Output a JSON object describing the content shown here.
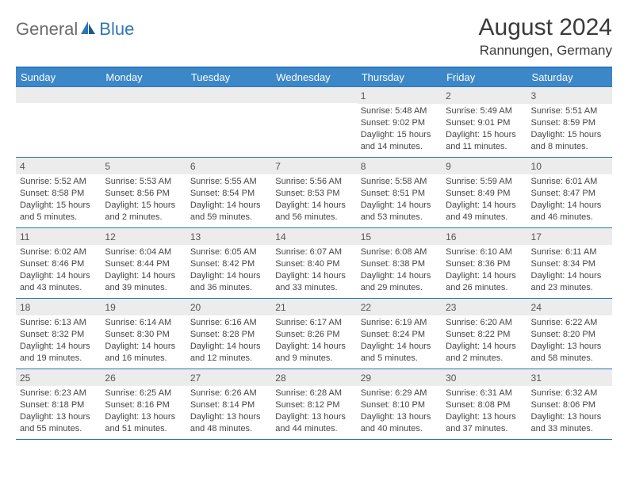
{
  "logo": {
    "part1": "General",
    "part2": "Blue"
  },
  "title": "August 2024",
  "location": "Rannungen, Germany",
  "colors": {
    "header_bg": "#3b87c8",
    "border": "#2f76b5",
    "daynum_bg": "#ececec",
    "logo_gray": "#6b6b6b",
    "logo_blue": "#2f76b5"
  },
  "weekdays": [
    "Sunday",
    "Monday",
    "Tuesday",
    "Wednesday",
    "Thursday",
    "Friday",
    "Saturday"
  ],
  "weeks": [
    [
      {
        "n": "",
        "sr": "",
        "ss": "",
        "dl": ""
      },
      {
        "n": "",
        "sr": "",
        "ss": "",
        "dl": ""
      },
      {
        "n": "",
        "sr": "",
        "ss": "",
        "dl": ""
      },
      {
        "n": "",
        "sr": "",
        "ss": "",
        "dl": ""
      },
      {
        "n": "1",
        "sr": "Sunrise: 5:48 AM",
        "ss": "Sunset: 9:02 PM",
        "dl": "Daylight: 15 hours and 14 minutes."
      },
      {
        "n": "2",
        "sr": "Sunrise: 5:49 AM",
        "ss": "Sunset: 9:01 PM",
        "dl": "Daylight: 15 hours and 11 minutes."
      },
      {
        "n": "3",
        "sr": "Sunrise: 5:51 AM",
        "ss": "Sunset: 8:59 PM",
        "dl": "Daylight: 15 hours and 8 minutes."
      }
    ],
    [
      {
        "n": "4",
        "sr": "Sunrise: 5:52 AM",
        "ss": "Sunset: 8:58 PM",
        "dl": "Daylight: 15 hours and 5 minutes."
      },
      {
        "n": "5",
        "sr": "Sunrise: 5:53 AM",
        "ss": "Sunset: 8:56 PM",
        "dl": "Daylight: 15 hours and 2 minutes."
      },
      {
        "n": "6",
        "sr": "Sunrise: 5:55 AM",
        "ss": "Sunset: 8:54 PM",
        "dl": "Daylight: 14 hours and 59 minutes."
      },
      {
        "n": "7",
        "sr": "Sunrise: 5:56 AM",
        "ss": "Sunset: 8:53 PM",
        "dl": "Daylight: 14 hours and 56 minutes."
      },
      {
        "n": "8",
        "sr": "Sunrise: 5:58 AM",
        "ss": "Sunset: 8:51 PM",
        "dl": "Daylight: 14 hours and 53 minutes."
      },
      {
        "n": "9",
        "sr": "Sunrise: 5:59 AM",
        "ss": "Sunset: 8:49 PM",
        "dl": "Daylight: 14 hours and 49 minutes."
      },
      {
        "n": "10",
        "sr": "Sunrise: 6:01 AM",
        "ss": "Sunset: 8:47 PM",
        "dl": "Daylight: 14 hours and 46 minutes."
      }
    ],
    [
      {
        "n": "11",
        "sr": "Sunrise: 6:02 AM",
        "ss": "Sunset: 8:46 PM",
        "dl": "Daylight: 14 hours and 43 minutes."
      },
      {
        "n": "12",
        "sr": "Sunrise: 6:04 AM",
        "ss": "Sunset: 8:44 PM",
        "dl": "Daylight: 14 hours and 39 minutes."
      },
      {
        "n": "13",
        "sr": "Sunrise: 6:05 AM",
        "ss": "Sunset: 8:42 PM",
        "dl": "Daylight: 14 hours and 36 minutes."
      },
      {
        "n": "14",
        "sr": "Sunrise: 6:07 AM",
        "ss": "Sunset: 8:40 PM",
        "dl": "Daylight: 14 hours and 33 minutes."
      },
      {
        "n": "15",
        "sr": "Sunrise: 6:08 AM",
        "ss": "Sunset: 8:38 PM",
        "dl": "Daylight: 14 hours and 29 minutes."
      },
      {
        "n": "16",
        "sr": "Sunrise: 6:10 AM",
        "ss": "Sunset: 8:36 PM",
        "dl": "Daylight: 14 hours and 26 minutes."
      },
      {
        "n": "17",
        "sr": "Sunrise: 6:11 AM",
        "ss": "Sunset: 8:34 PM",
        "dl": "Daylight: 14 hours and 23 minutes."
      }
    ],
    [
      {
        "n": "18",
        "sr": "Sunrise: 6:13 AM",
        "ss": "Sunset: 8:32 PM",
        "dl": "Daylight: 14 hours and 19 minutes."
      },
      {
        "n": "19",
        "sr": "Sunrise: 6:14 AM",
        "ss": "Sunset: 8:30 PM",
        "dl": "Daylight: 14 hours and 16 minutes."
      },
      {
        "n": "20",
        "sr": "Sunrise: 6:16 AM",
        "ss": "Sunset: 8:28 PM",
        "dl": "Daylight: 14 hours and 12 minutes."
      },
      {
        "n": "21",
        "sr": "Sunrise: 6:17 AM",
        "ss": "Sunset: 8:26 PM",
        "dl": "Daylight: 14 hours and 9 minutes."
      },
      {
        "n": "22",
        "sr": "Sunrise: 6:19 AM",
        "ss": "Sunset: 8:24 PM",
        "dl": "Daylight: 14 hours and 5 minutes."
      },
      {
        "n": "23",
        "sr": "Sunrise: 6:20 AM",
        "ss": "Sunset: 8:22 PM",
        "dl": "Daylight: 14 hours and 2 minutes."
      },
      {
        "n": "24",
        "sr": "Sunrise: 6:22 AM",
        "ss": "Sunset: 8:20 PM",
        "dl": "Daylight: 13 hours and 58 minutes."
      }
    ],
    [
      {
        "n": "25",
        "sr": "Sunrise: 6:23 AM",
        "ss": "Sunset: 8:18 PM",
        "dl": "Daylight: 13 hours and 55 minutes."
      },
      {
        "n": "26",
        "sr": "Sunrise: 6:25 AM",
        "ss": "Sunset: 8:16 PM",
        "dl": "Daylight: 13 hours and 51 minutes."
      },
      {
        "n": "27",
        "sr": "Sunrise: 6:26 AM",
        "ss": "Sunset: 8:14 PM",
        "dl": "Daylight: 13 hours and 48 minutes."
      },
      {
        "n": "28",
        "sr": "Sunrise: 6:28 AM",
        "ss": "Sunset: 8:12 PM",
        "dl": "Daylight: 13 hours and 44 minutes."
      },
      {
        "n": "29",
        "sr": "Sunrise: 6:29 AM",
        "ss": "Sunset: 8:10 PM",
        "dl": "Daylight: 13 hours and 40 minutes."
      },
      {
        "n": "30",
        "sr": "Sunrise: 6:31 AM",
        "ss": "Sunset: 8:08 PM",
        "dl": "Daylight: 13 hours and 37 minutes."
      },
      {
        "n": "31",
        "sr": "Sunrise: 6:32 AM",
        "ss": "Sunset: 8:06 PM",
        "dl": "Daylight: 13 hours and 33 minutes."
      }
    ]
  ]
}
